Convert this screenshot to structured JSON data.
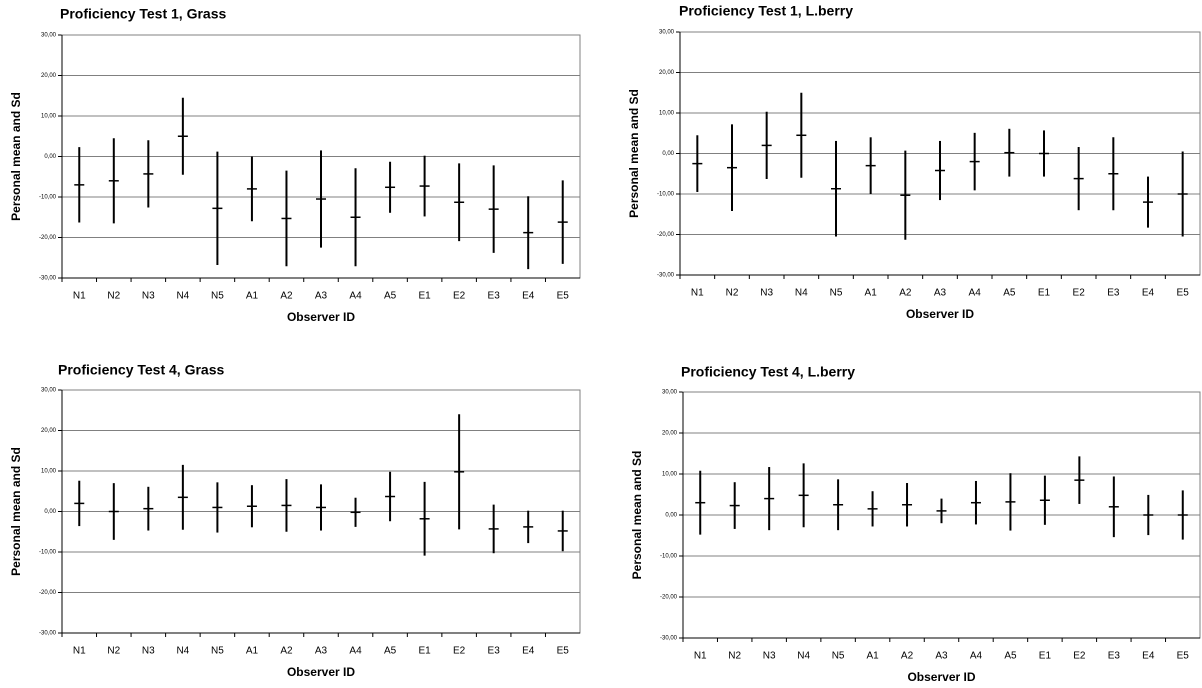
{
  "chart_data": [
    {
      "type": "errorbar",
      "title": "Proficiency Test 1, Grass",
      "x_label": "Observer ID",
      "y_label": "Personal mean and Sd",
      "color": "#000000",
      "grid": true,
      "categories": [
        "N1",
        "N2",
        "N3",
        "N4",
        "N5",
        "A1",
        "A2",
        "A3",
        "A4",
        "A5",
        "E1",
        "E2",
        "E3",
        "E4",
        "E5"
      ],
      "values": [
        -7,
        -6,
        -4.3,
        5,
        -12.8,
        -8,
        -15.3,
        -10.5,
        -15,
        -7.6,
        -7.3,
        -11.3,
        -13,
        -18.8,
        -16.2
      ],
      "errors": [
        9.3,
        10.5,
        8.3,
        9.5,
        14,
        8,
        11.8,
        12,
        12.1,
        6.3,
        7.5,
        9.6,
        10.8,
        9,
        10.3
      ],
      "ylim": [
        -30,
        30
      ],
      "yticks": [
        {
          "value": -30,
          "label": "-30,00"
        },
        {
          "value": -20,
          "label": "-20,00"
        },
        {
          "value": -10,
          "label": "-10,00"
        },
        {
          "value": 0,
          "label": "0,00"
        },
        {
          "value": 10,
          "label": "10,00"
        },
        {
          "value": 20,
          "label": "20,00"
        },
        {
          "value": 30,
          "label": "30,00"
        }
      ]
    },
    {
      "type": "errorbar",
      "title": "Proficiency Test 1, L.berry",
      "x_label": "Observer ID",
      "y_label": "Personal mean and Sd",
      "color": "#000000",
      "grid": true,
      "categories": [
        "N1",
        "N2",
        "N3",
        "N4",
        "N5",
        "A1",
        "A2",
        "A3",
        "A4",
        "A5",
        "E1",
        "E2",
        "E3",
        "E4",
        "E5"
      ],
      "values": [
        -2.5,
        -3.5,
        2,
        4.5,
        -8.7,
        -3,
        -10.3,
        -4.2,
        -2,
        0.2,
        0,
        -6.2,
        -5,
        -12,
        -10
      ],
      "errors": [
        7,
        10.7,
        8.3,
        10.5,
        11.8,
        7,
        11,
        7.3,
        7.1,
        5.9,
        5.7,
        7.8,
        9,
        6.3,
        10.5
      ],
      "ylim": [
        -30,
        30
      ],
      "yticks": [
        {
          "value": -30,
          "label": "-30,00"
        },
        {
          "value": -20,
          "label": "-20,00"
        },
        {
          "value": -10,
          "label": "-10,00"
        },
        {
          "value": 0,
          "label": "0,00"
        },
        {
          "value": 10,
          "label": "10,00"
        },
        {
          "value": 20,
          "label": "20,00"
        },
        {
          "value": 30,
          "label": "30,00"
        }
      ]
    },
    {
      "type": "errorbar",
      "title": "Proficiency Test 4, Grass",
      "x_label": "Observer ID",
      "y_label": "Personal mean and Sd",
      "color": "#000000",
      "grid": true,
      "categories": [
        "N1",
        "N2",
        "N3",
        "N4",
        "N5",
        "A1",
        "A2",
        "A3",
        "A4",
        "A5",
        "E1",
        "E2",
        "E3",
        "E4",
        "E5"
      ],
      "values": [
        2,
        0,
        0.7,
        3.5,
        1,
        1.3,
        1.5,
        1,
        -0.2,
        3.7,
        -1.8,
        9.8,
        -4.3,
        -3.8,
        -4.8
      ],
      "errors": [
        5.6,
        7,
        5.4,
        8,
        6.2,
        5.2,
        6.5,
        5.7,
        3.6,
        6.1,
        9.1,
        14.2,
        6,
        4,
        5
      ],
      "ylim": [
        -30,
        30
      ],
      "yticks": [
        {
          "value": -30,
          "label": "-30,00"
        },
        {
          "value": -20,
          "label": "-20,00"
        },
        {
          "value": -10,
          "label": "-10,00"
        },
        {
          "value": 0,
          "label": "0,00"
        },
        {
          "value": 10,
          "label": "10,00"
        },
        {
          "value": 20,
          "label": "20,00"
        },
        {
          "value": 30,
          "label": "30,00"
        }
      ]
    },
    {
      "type": "errorbar",
      "title": "Proficiency Test 4, L.berry",
      "x_label": "Observer ID",
      "y_label": "Personal mean and Sd",
      "color": "#000000",
      "grid": true,
      "categories": [
        "N1",
        "N2",
        "N3",
        "N4",
        "N5",
        "A1",
        "A2",
        "A3",
        "A4",
        "A5",
        "E1",
        "E2",
        "E3",
        "E4",
        "E5"
      ],
      "values": [
        3,
        2.3,
        4,
        4.8,
        2.5,
        1.5,
        2.5,
        1,
        3,
        3.2,
        3.6,
        8.5,
        2,
        0,
        0
      ],
      "errors": [
        7.8,
        5.7,
        7.7,
        7.8,
        6.2,
        4.3,
        5.3,
        3,
        5.3,
        7,
        6,
        5.8,
        7.4,
        4.9,
        6
      ],
      "ylim": [
        -30,
        30
      ],
      "yticks": [
        {
          "value": -30,
          "label": "-30,00"
        },
        {
          "value": -20,
          "label": "-20,00"
        },
        {
          "value": -10,
          "label": "-10,00"
        },
        {
          "value": 0,
          "label": "0,00"
        },
        {
          "value": 10,
          "label": "10,00"
        },
        {
          "value": 20,
          "label": "20,00"
        },
        {
          "value": 30,
          "label": "30,00"
        }
      ]
    }
  ]
}
